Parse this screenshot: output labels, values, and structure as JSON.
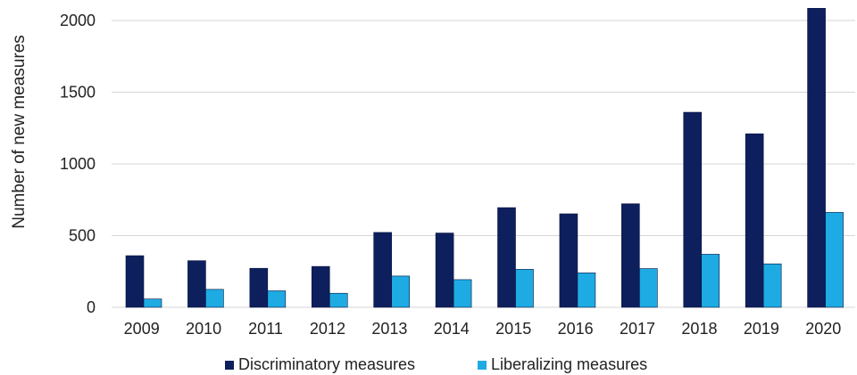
{
  "chart_data": {
    "type": "bar",
    "title": "",
    "xlabel": "",
    "ylabel": "Number of new measures",
    "ylim": [
      0,
      2100
    ],
    "yticks": [
      0,
      500,
      1000,
      1500,
      2000
    ],
    "grid": "horizontal",
    "legend_position": "bottom",
    "categories": [
      "2009",
      "2010",
      "2011",
      "2012",
      "2013",
      "2014",
      "2015",
      "2016",
      "2017",
      "2018",
      "2019",
      "2020"
    ],
    "series": [
      {
        "name": "Discriminatory measures",
        "color": "#0d1f5c",
        "values": [
          360,
          325,
          272,
          285,
          522,
          518,
          695,
          652,
          722,
          1360,
          1210,
          2085
        ]
      },
      {
        "name": "Liberalizing measures",
        "color": "#1eabe3",
        "values": [
          58,
          125,
          115,
          98,
          218,
          193,
          265,
          240,
          270,
          370,
          303,
          662
        ]
      }
    ]
  }
}
